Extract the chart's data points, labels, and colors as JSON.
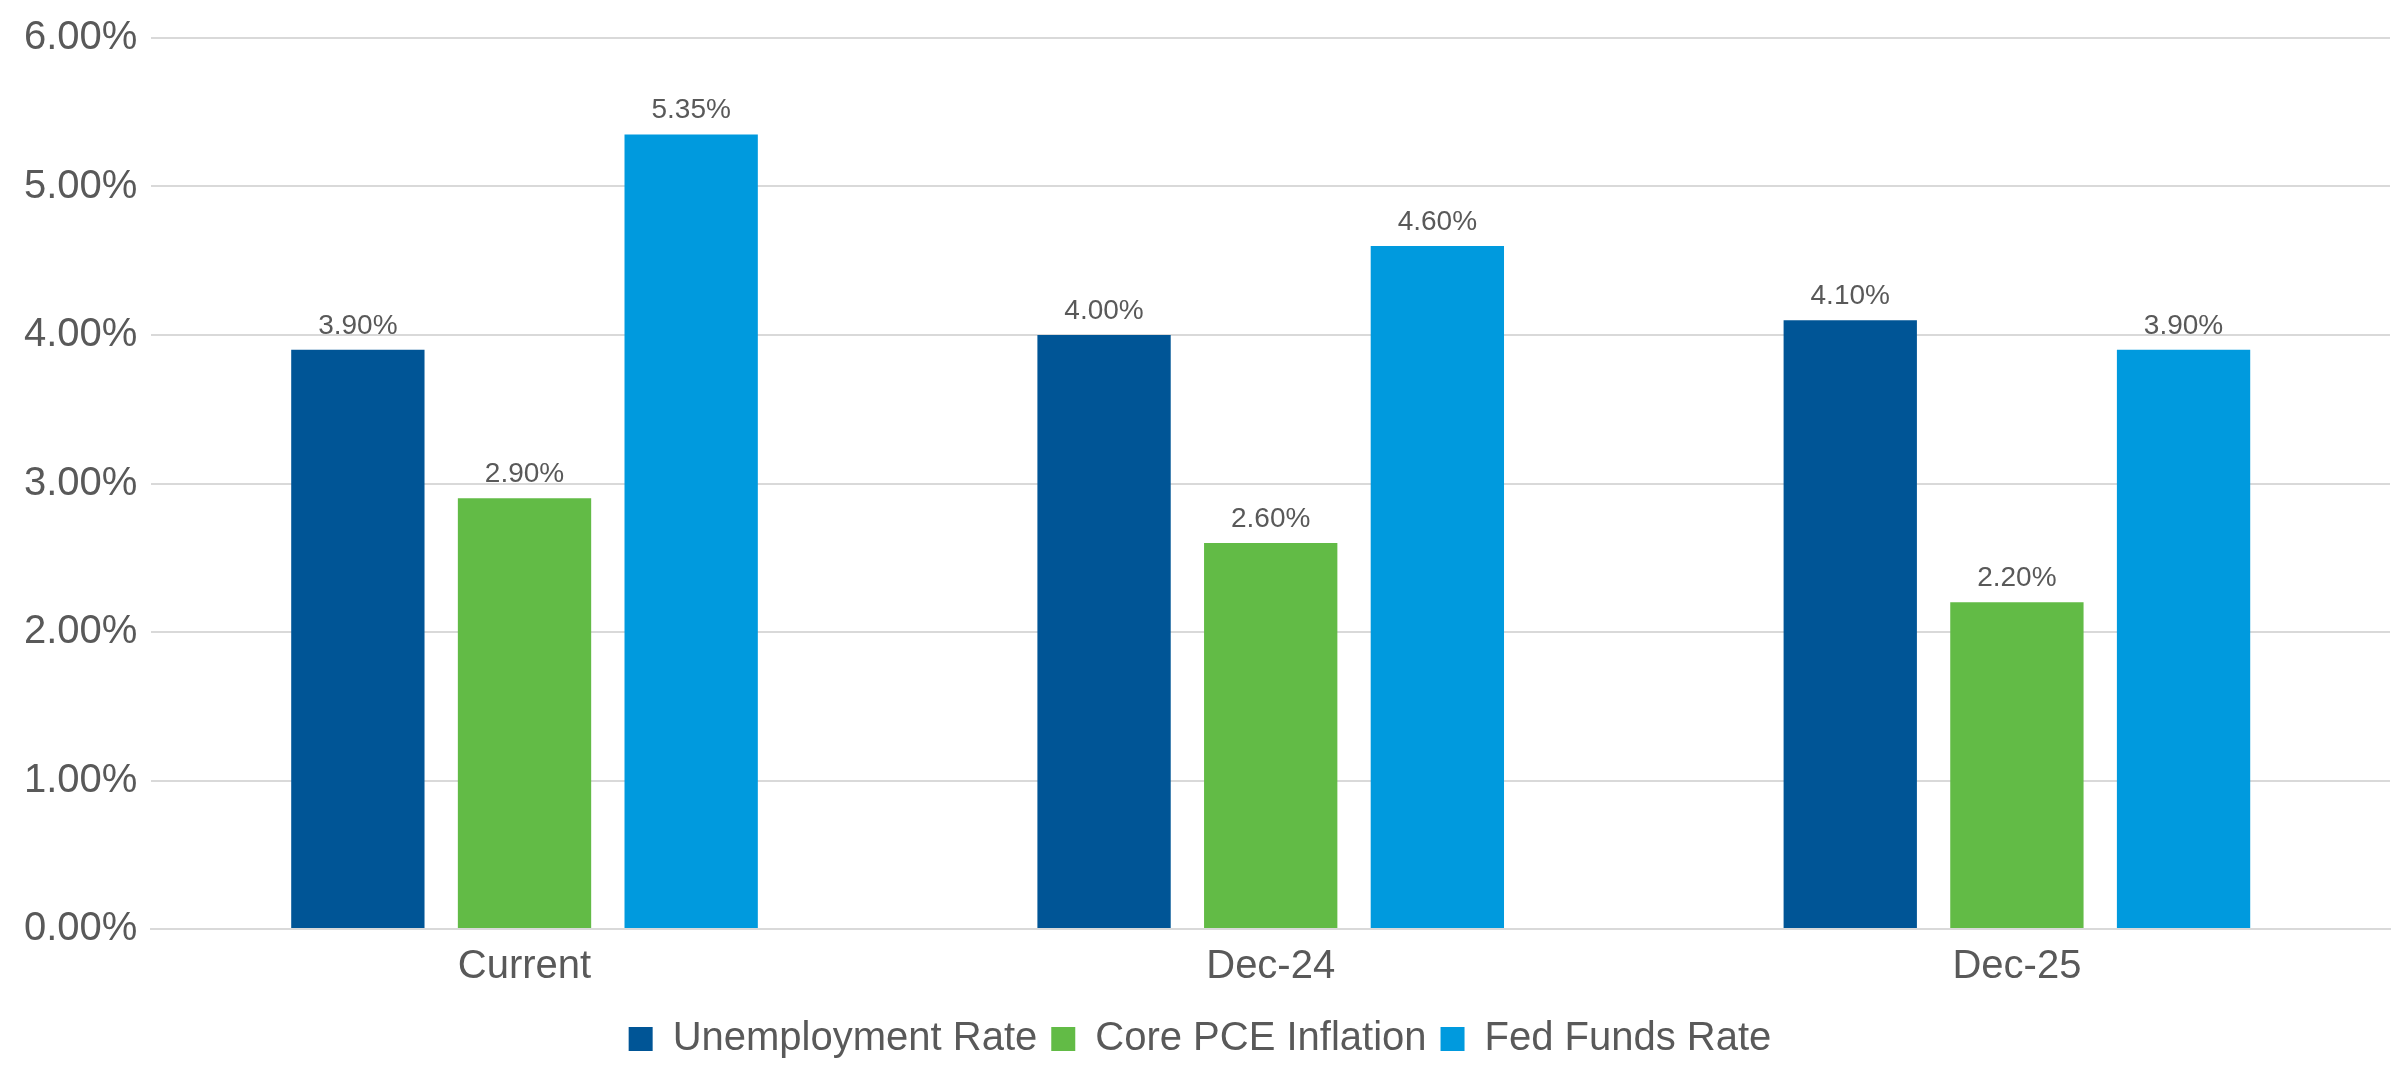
{
  "chart_data": {
    "type": "bar",
    "categories": [
      "Current",
      "Dec-24",
      "Dec-25"
    ],
    "series": [
      {
        "name": "Unemployment Rate",
        "color": "#005596",
        "values": [
          3.9,
          4.0,
          4.1
        ],
        "value_labels": [
          "3.90%",
          "4.00%",
          "4.10%"
        ]
      },
      {
        "name": "Core PCE Inflation",
        "color": "#62bb46",
        "values": [
          2.9,
          2.6,
          2.2
        ],
        "value_labels": [
          "2.90%",
          "2.60%",
          "2.20%"
        ]
      },
      {
        "name": "Fed Funds Rate",
        "color": "#009ade",
        "values": [
          5.35,
          4.6,
          3.9
        ],
        "value_labels": [
          "5.35%",
          "4.60%",
          "3.90%"
        ]
      }
    ],
    "ylim": [
      0,
      6
    ],
    "yticks": [
      {
        "value": 0,
        "label": "0.00%"
      },
      {
        "value": 1,
        "label": "1.00%"
      },
      {
        "value": 2,
        "label": "2.00%"
      },
      {
        "value": 3,
        "label": "3.00%"
      },
      {
        "value": 4,
        "label": "4.00%"
      },
      {
        "value": 5,
        "label": "5.00%"
      },
      {
        "value": 6,
        "label": "6.00%"
      }
    ],
    "grid": "y",
    "legend": "bottom"
  }
}
